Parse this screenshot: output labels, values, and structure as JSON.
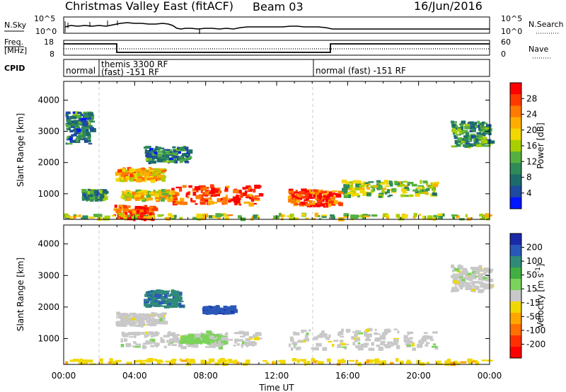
{
  "header": {
    "title": "Christmas Valley East (fitACF)",
    "beam": "Beam 03",
    "date": "16/Jun/2016"
  },
  "summary_panels": {
    "noise": {
      "left_label": "N.Sky",
      "right_label": "N.Search",
      "left_ticks": [
        "10^5",
        "10^0"
      ],
      "right_ticks": [
        "10^5",
        "10^0"
      ]
    },
    "freq": {
      "left_label_1": "Freq.",
      "left_label_2": "[MHz]",
      "left_ticks": [
        "18",
        "8"
      ],
      "right_label": "Nave",
      "right_ticks": [
        "60",
        "0"
      ]
    },
    "cpid": {
      "label": "CPID",
      "segments": [
        "normal",
        "themis 3300 RF",
        "(fast) -151 RF",
        "normal (fast) -151 RF"
      ]
    }
  },
  "colorbars": {
    "power": {
      "title": "Power [dB]",
      "labels": [
        "28",
        "24",
        "20",
        "16",
        "12",
        "8",
        "4"
      ],
      "colors": [
        "#ff0000",
        "#ff3a00",
        "#ff7a00",
        "#ffae00",
        "#f2d800",
        "#a8d000",
        "#55b040",
        "#2e8b57",
        "#1e6b6b",
        "#1f4aa0",
        "#0016ff"
      ]
    },
    "velocity": {
      "title": "Velocity [m s",
      "title_sup": "-1",
      "title_end": "]",
      "labels": [
        "200",
        "100",
        "50",
        "15",
        "-15",
        "-50",
        "-100",
        "-200"
      ],
      "colors": [
        "#1b2aa8",
        "#2a58b8",
        "#2f8b78",
        "#40b040",
        "#7bd35a",
        "#c8c8c8",
        "#f0d800",
        "#ffa500",
        "#ff7000",
        "#ff3000",
        "#ff0000"
      ]
    }
  },
  "axes": {
    "y_label": "Slant Range [km]",
    "y_ticks": [
      "1000",
      "2000",
      "3000",
      "4000"
    ],
    "x_label": "Time UT",
    "x_ticks": [
      "00:00",
      "04:00",
      "08:00",
      "12:00",
      "16:00",
      "20:00",
      "00:00"
    ]
  },
  "chart_data": [
    {
      "type": "heatmap",
      "title": "Power [dB]",
      "x_axis": "Time UT (hours)",
      "y_axis": "Slant Range [km]",
      "xlim": [
        0,
        24
      ],
      "ylim": [
        180,
        4600
      ],
      "colorbar_range": [
        0,
        30
      ],
      "regions": [
        {
          "t": [
            0.1,
            1.5
          ],
          "r": [
            2600,
            3600
          ],
          "value": 8
        },
        {
          "t": [
            1.0,
            2.2
          ],
          "r": [
            800,
            1100
          ],
          "value": 10
        },
        {
          "t": [
            2.9,
            5.6
          ],
          "r": [
            1400,
            1800
          ],
          "value": 20
        },
        {
          "t": [
            3.2,
            6.1
          ],
          "r": [
            800,
            1100
          ],
          "value": 18
        },
        {
          "t": [
            6.0,
            11.0
          ],
          "r": [
            650,
            1250
          ],
          "value": 26
        },
        {
          "t": [
            2.8,
            5.0
          ],
          "r": [
            180,
            600
          ],
          "value": 26
        },
        {
          "t": [
            12.6,
            15.5
          ],
          "r": [
            600,
            1100
          ],
          "value": 25
        },
        {
          "t": [
            15.5,
            21.0
          ],
          "r": [
            900,
            1400
          ],
          "value": 14
        },
        {
          "t": [
            21.8,
            24.0
          ],
          "r": [
            2500,
            3300
          ],
          "value": 10
        },
        {
          "t": [
            4.5,
            7.0
          ],
          "r": [
            2000,
            2500
          ],
          "value": 8
        },
        {
          "t": [
            0.0,
            24.0
          ],
          "r": [
            180,
            330
          ],
          "value": 16
        }
      ]
    },
    {
      "type": "heatmap",
      "title": "Velocity [m s-1]",
      "x_axis": "Time UT (hours)",
      "y_axis": "Slant Range [km]",
      "xlim": [
        0,
        24
      ],
      "ylim": [
        180,
        4600
      ],
      "colorbar_range": [
        -200,
        200
      ],
      "regions": [
        {
          "t": [
            2.9,
            5.6
          ],
          "r": [
            1400,
            1800
          ],
          "value": 0
        },
        {
          "t": [
            3.2,
            11.0
          ],
          "r": [
            700,
            1200
          ],
          "value": 0
        },
        {
          "t": [
            6.5,
            9.0
          ],
          "r": [
            850,
            1100
          ],
          "value": 30
        },
        {
          "t": [
            12.6,
            21.0
          ],
          "r": [
            650,
            1300
          ],
          "value": 0
        },
        {
          "t": [
            4.5,
            6.5
          ],
          "r": [
            2000,
            2500
          ],
          "value": 120
        },
        {
          "t": [
            7.8,
            9.5
          ],
          "r": [
            1800,
            2000
          ],
          "value": 150
        },
        {
          "t": [
            21.8,
            24.0
          ],
          "r": [
            2500,
            3300
          ],
          "value": 0
        },
        {
          "t": [
            0.0,
            24.0
          ],
          "r": [
            180,
            330
          ],
          "value": -40
        }
      ]
    }
  ]
}
